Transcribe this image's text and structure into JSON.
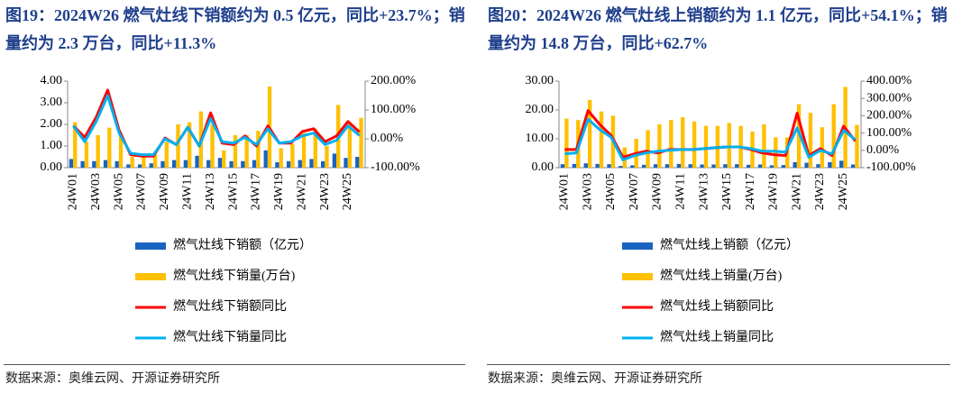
{
  "chart_data": [
    {
      "type": "bar",
      "title": "图19：2024W26 燃气灶线下销额约为 0.5 亿元，同比+23.7%；销量约为 2.3 万台，同比+11.3%",
      "source": "数据来源：奥维云网、开源证券研究所",
      "categories": [
        "24W01",
        null,
        "24W03",
        null,
        "24W05",
        null,
        "24W07",
        null,
        "24W09",
        null,
        "24W11",
        null,
        "24W13",
        null,
        "24W15",
        null,
        "24W17",
        null,
        "24W19",
        null,
        "24W21",
        null,
        "24W23",
        null,
        "24W25",
        null
      ],
      "ylim": [
        0,
        4
      ],
      "yticks": [
        {
          "value": 0,
          "label": "0.00"
        },
        {
          "value": 1,
          "label": "1.00"
        },
        {
          "value": 2,
          "label": "2.00"
        },
        {
          "value": 3,
          "label": "3.00"
        },
        {
          "value": 4,
          "label": "4.00"
        }
      ],
      "y2lim": [
        -100,
        200
      ],
      "y2ticks": [
        {
          "value": -100,
          "label": "-100.00%"
        },
        {
          "value": 0,
          "label": "0.00%"
        },
        {
          "value": 100,
          "label": "100.00%"
        },
        {
          "value": 200,
          "label": "200.00%"
        }
      ],
      "series": [
        {
          "name": "燃气灶线下销额（亿元）",
          "type": "bar",
          "color": "#1a63c0",
          "values": [
            0.4,
            0.3,
            0.3,
            0.35,
            0.3,
            0.15,
            0.15,
            0.2,
            0.3,
            0.35,
            0.35,
            0.55,
            0.35,
            0.45,
            0.3,
            0.3,
            0.35,
            0.8,
            0.25,
            0.3,
            0.35,
            0.4,
            0.3,
            0.65,
            0.45,
            0.5
          ]
        },
        {
          "name": "燃气灶线下销量(万台)",
          "type": "bar",
          "color": "#ffc000",
          "values": [
            2.1,
            1.2,
            1.5,
            1.85,
            1.5,
            0.5,
            0.5,
            0.6,
            1.2,
            2.0,
            2.1,
            2.6,
            2.0,
            0.8,
            1.5,
            1.5,
            1.7,
            3.75,
            0.9,
            1.1,
            1.6,
            1.8,
            1.0,
            2.9,
            2.1,
            2.3
          ]
        },
        {
          "name": "燃气灶线下销额同比",
          "type": "line",
          "axis": "y2",
          "color": "#ff0000",
          "values": [
            45,
            5,
            75,
            169,
            30,
            -55,
            -60,
            -60,
            3,
            -20,
            40,
            -25,
            90,
            -15,
            -20,
            10,
            -25,
            45,
            -15,
            -15,
            25,
            35,
            -10,
            10,
            60,
            23.7
          ]
        },
        {
          "name": "燃气灶线下销量同比",
          "type": "line",
          "axis": "y2",
          "color": "#00b0f0",
          "values": [
            45,
            -10,
            60,
            150,
            20,
            -50,
            -55,
            -55,
            0,
            -20,
            40,
            -25,
            70,
            -10,
            -15,
            5,
            -20,
            35,
            -15,
            -10,
            10,
            20,
            -20,
            -5,
            45,
            11.3
          ]
        }
      ]
    },
    {
      "type": "bar",
      "title": "图20：2024W26 燃气灶线上销额约为 1.1 亿元，同比+54.1%；销量约为 14.8 万台，同比+62.7%",
      "source": "数据来源：奥维云网、开源证券研究所",
      "categories": [
        "24W01",
        null,
        "24W03",
        null,
        "24W05",
        null,
        "24W07",
        null,
        "24W09",
        null,
        "24W11",
        null,
        "24W13",
        null,
        "24W15",
        null,
        "24W17",
        null,
        "24W19",
        null,
        "24W21",
        null,
        "24W23",
        null,
        "24W25",
        null
      ],
      "ylim": [
        0,
        30
      ],
      "yticks": [
        {
          "value": 0,
          "label": "0.00"
        },
        {
          "value": 10,
          "label": "10.00"
        },
        {
          "value": 20,
          "label": "20.00"
        },
        {
          "value": 30,
          "label": "30.00"
        }
      ],
      "y2lim": [
        -100,
        400
      ],
      "y2ticks": [
        {
          "value": -100,
          "label": "-100.00%"
        },
        {
          "value": 0,
          "label": "0.00%"
        },
        {
          "value": 100,
          "label": "100.00%"
        },
        {
          "value": 200,
          "label": "200.00%"
        },
        {
          "value": 300,
          "label": "300.00%"
        },
        {
          "value": 400,
          "label": "400.00%"
        }
      ],
      "series": [
        {
          "name": "燃气灶线上销额（亿元）",
          "type": "bar",
          "color": "#1a63c0",
          "values": [
            1.2,
            1.3,
            1.5,
            1.3,
            1.2,
            0.6,
            0.8,
            1.0,
            1.2,
            1.2,
            1.3,
            1.2,
            1.1,
            1.1,
            1.2,
            1.2,
            1.0,
            1.1,
            0.8,
            0.9,
            1.9,
            1.7,
            1.2,
            1.9,
            2.4,
            1.1
          ]
        },
        {
          "name": "燃气灶线上销量(万台)",
          "type": "bar",
          "color": "#ffc000",
          "values": [
            17,
            16.5,
            23.5,
            19.5,
            18,
            7,
            10,
            13,
            15,
            16.5,
            17.5,
            16,
            14.5,
            14.5,
            15.5,
            14.5,
            12.5,
            15,
            10.5,
            10.5,
            22,
            19,
            14,
            22,
            28,
            14.8
          ]
        },
        {
          "name": "燃气灶线上销额同比",
          "type": "line",
          "axis": "y2",
          "color": "#ff0000",
          "values": [
            5,
            5,
            230,
            150,
            85,
            -40,
            -20,
            -5,
            -15,
            5,
            5,
            5,
            10,
            15,
            20,
            20,
            5,
            -15,
            -25,
            -30,
            215,
            -30,
            10,
            -30,
            140,
            54.1
          ]
        },
        {
          "name": "燃气灶线上销量同比",
          "type": "line",
          "axis": "y2",
          "color": "#00b0f0",
          "values": [
            -20,
            -15,
            180,
            120,
            75,
            -55,
            -30,
            -15,
            -5,
            0,
            5,
            5,
            10,
            15,
            20,
            20,
            10,
            -5,
            -5,
            -10,
            130,
            -40,
            0,
            -20,
            115,
            62.7
          ]
        }
      ]
    }
  ]
}
